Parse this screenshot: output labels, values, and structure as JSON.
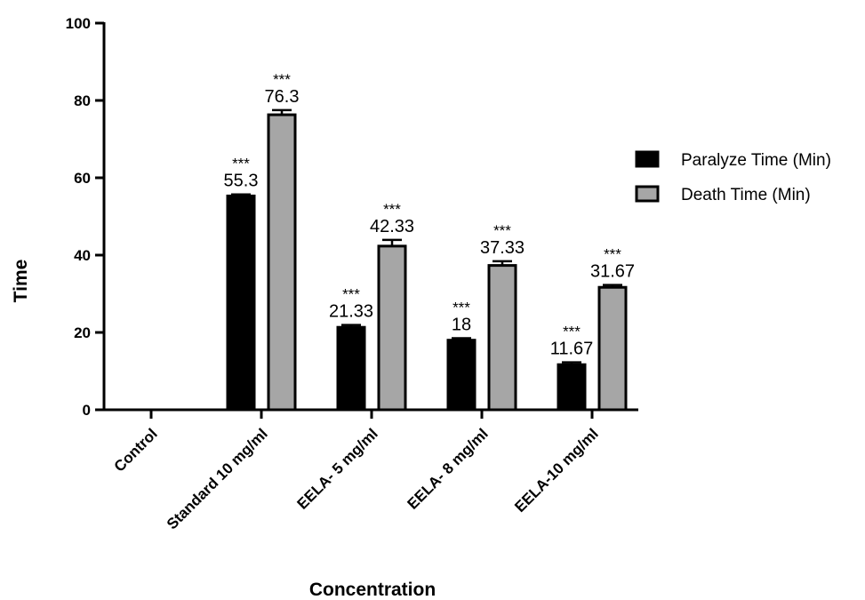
{
  "chart_data": {
    "type": "bar",
    "title": "",
    "xlabel": "Concentration",
    "ylabel": "Time",
    "ylim": [
      0,
      100
    ],
    "yticks": [
      0,
      20,
      40,
      60,
      80,
      100
    ],
    "grid": false,
    "legend_position": "right",
    "categories": [
      "Control",
      "Standard 10 mg/ml",
      "EELA- 5 mg/ml",
      "EELA- 8 mg/ml",
      "EELA-10 mg/ml"
    ],
    "series": [
      {
        "name": "Paralyze Time (Min)",
        "color": "#000000",
        "values": [
          0,
          55.3,
          21.33,
          18,
          11.67
        ],
        "errors": [
          0,
          0.4,
          0.6,
          0.5,
          0.6
        ],
        "labels": [
          "",
          "55.3",
          "21.33",
          "18",
          "11.67"
        ],
        "significance": [
          "",
          "***",
          "***",
          "***",
          "***"
        ]
      },
      {
        "name": "Death Time (Min)",
        "color": "#a6a6a6",
        "values": [
          0,
          76.3,
          42.33,
          37.33,
          31.67
        ],
        "errors": [
          0,
          1.2,
          1.6,
          1.1,
          0.6
        ],
        "labels": [
          "",
          "76.3",
          "42.33",
          "37.33",
          "31.67"
        ],
        "significance": [
          "",
          "***",
          "***",
          "***",
          "***"
        ]
      }
    ]
  }
}
